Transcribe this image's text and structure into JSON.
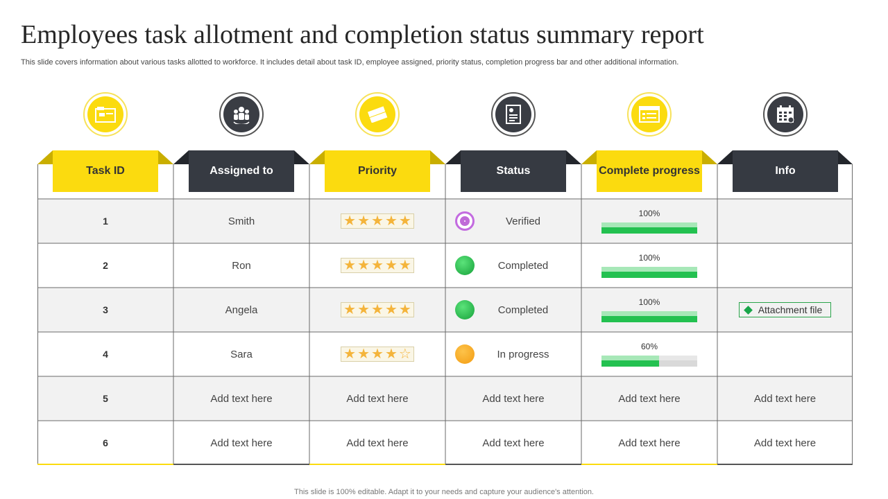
{
  "title": "Employees task allotment and completion status summary report",
  "subtitle": "This slide covers information about various tasks allotted to workforce. It includes detail about task ID, employee assigned, priority status, completion progress bar and other additional information.",
  "footer": "This slide is 100% editable. Adapt it to your needs and capture your audience's attention.",
  "columns": [
    {
      "label": "Task ID",
      "icon": "folder-icon",
      "style": "yellow"
    },
    {
      "label": "Assigned to",
      "icon": "team-icon",
      "style": "dark"
    },
    {
      "label": "Priority",
      "icon": "tag-icon",
      "style": "yellow"
    },
    {
      "label": "Status",
      "icon": "document-icon",
      "style": "dark"
    },
    {
      "label": "Complete progress",
      "icon": "checklist-icon",
      "style": "yellow"
    },
    {
      "label": "Info",
      "icon": "calendar-icon",
      "style": "dark"
    }
  ],
  "rows": [
    {
      "id": "1",
      "assigned": "Smith",
      "stars": 5,
      "status": "Verified",
      "status_type": "verified",
      "progress": 100,
      "progress_label": "100%",
      "info": ""
    },
    {
      "id": "2",
      "assigned": "Ron",
      "stars": 5,
      "status": "Completed",
      "status_type": "completed",
      "progress": 100,
      "progress_label": "100%",
      "info": ""
    },
    {
      "id": "3",
      "assigned": "Angela",
      "stars": 5,
      "status": "Completed",
      "status_type": "completed",
      "progress": 100,
      "progress_label": "100%",
      "info": "Attachment file"
    },
    {
      "id": "4",
      "assigned": "Sara",
      "stars": 4,
      "status": "In progress",
      "status_type": "progress",
      "progress": 60,
      "progress_label": "60%",
      "info": ""
    },
    {
      "id": "5",
      "assigned": "Add text here",
      "priority": "Add text here",
      "status": "Add text here",
      "progress_text": "Add text here",
      "info": "Add text here"
    },
    {
      "id": "6",
      "assigned": "Add text here",
      "priority": "Add text here",
      "status": "Add text here",
      "progress_text": "Add text here",
      "info": "Add text here"
    }
  ],
  "colors": {
    "yellow": "#fbdb0f",
    "dark": "#363a42",
    "green": "#23c150",
    "orange": "#f39c12",
    "purple": "#c06ad8"
  }
}
